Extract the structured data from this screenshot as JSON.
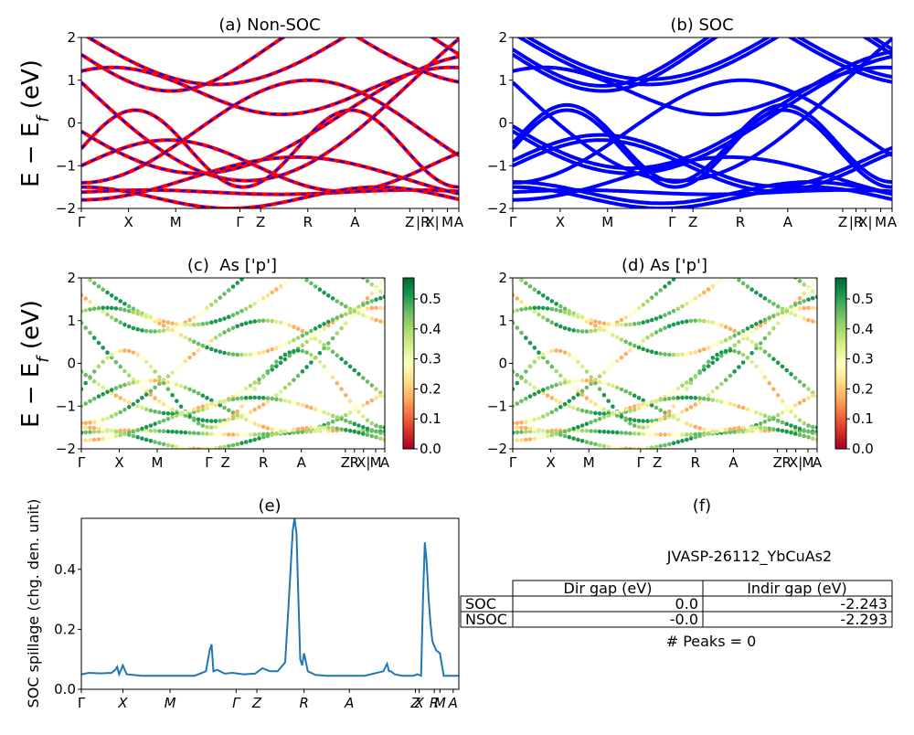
{
  "chart_data": [
    {
      "id": "a",
      "type": "line",
      "title": "(a) Non-SOC",
      "ylabel": "E - E_f (eV)",
      "ylim": [
        -2,
        2
      ],
      "yticks": [
        "2",
        "1",
        "0",
        "−1",
        "−2"
      ],
      "kpoint_labels": [
        "Γ",
        "X",
        "M",
        "Γ",
        "Z",
        "R",
        "A",
        "Z",
        "|R",
        "X|",
        "M",
        "A"
      ],
      "series": [
        {
          "color": "#ff0000",
          "dash_color": "#0000ff"
        }
      ]
    },
    {
      "id": "b",
      "type": "line",
      "title": "(b) SOC",
      "ylim": [
        -2,
        2
      ],
      "yticks": [
        "2",
        "1",
        "0",
        "−1",
        "−2"
      ],
      "kpoint_labels": [
        "Γ",
        "X",
        "M",
        "Γ",
        "Z",
        "R",
        "A",
        "Z",
        "|R",
        "X|",
        "M",
        "A"
      ],
      "series": [
        {
          "color": "#0000ff"
        }
      ]
    },
    {
      "id": "c",
      "type": "scatter",
      "title": "(c)  As ['p']",
      "ylabel": "E - E_f (eV)",
      "ylim": [
        -2,
        2
      ],
      "yticks": [
        "2",
        "1",
        "0",
        "−1",
        "−2"
      ],
      "kpoint_labels": [
        "Γ",
        "X",
        "M",
        "Γ",
        "Z",
        "R",
        "A",
        "Z",
        "R",
        "X|",
        "M",
        "A"
      ],
      "colorbar": {
        "min": 0.0,
        "max": 0.57,
        "ticks": [
          "0.5",
          "0.4",
          "0.3",
          "0.2",
          "0.1",
          "0.0"
        ],
        "colormap": "RdYlGn"
      }
    },
    {
      "id": "d",
      "type": "scatter",
      "title": "(d) As ['p']",
      "ylim": [
        -2,
        2
      ],
      "yticks": [
        "2",
        "1",
        "0",
        "−1",
        "−2"
      ],
      "kpoint_labels": [
        "Γ",
        "X",
        "M",
        "Γ",
        "Z",
        "R",
        "A",
        "Z",
        "R",
        "X|",
        "M",
        "A"
      ],
      "colorbar": {
        "min": 0.0,
        "max": 0.57,
        "ticks": [
          "0.5",
          "0.4",
          "0.3",
          "0.2",
          "0.1",
          "0.0"
        ],
        "colormap": "RdYlGn"
      }
    },
    {
      "id": "e",
      "type": "line",
      "title": "(e)",
      "ylabel": "SOC spillage (chg. den. unit)",
      "ylim": [
        0,
        0.57
      ],
      "yticks": [
        "0.4",
        "0.2",
        "0.0"
      ],
      "kpoint_labels": [
        "Γ",
        "X",
        "M",
        "Γ",
        "Z",
        "R",
        "A",
        "Z",
        "X",
        "R",
        "M",
        "A"
      ],
      "series": [
        {
          "color": "#1f77b4",
          "x": [
            0,
            0.02,
            0.05,
            0.08,
            0.09,
            0.095,
            0.1,
            0.11,
            0.12,
            0.16,
            0.2,
            0.25,
            0.3,
            0.33,
            0.34,
            0.345,
            0.35,
            0.36,
            0.38,
            0.4,
            0.43,
            0.46,
            0.48,
            0.5,
            0.52,
            0.54,
            0.55,
            0.56,
            0.565,
            0.57,
            0.575,
            0.58,
            0.585,
            0.59,
            0.6,
            0.62,
            0.65,
            0.7,
            0.75,
            0.8,
            0.81,
            0.815,
            0.82,
            0.83,
            0.85,
            0.88,
            0.89,
            0.9,
            0.905,
            0.91,
            0.915,
            0.92,
            0.925,
            0.93,
            0.94,
            0.95,
            0.96,
            0.98,
            1.0
          ],
          "y": [
            0.05,
            0.055,
            0.053,
            0.055,
            0.065,
            0.075,
            0.05,
            0.08,
            0.05,
            0.045,
            0.045,
            0.045,
            0.045,
            0.06,
            0.13,
            0.15,
            0.06,
            0.065,
            0.052,
            0.055,
            0.05,
            0.052,
            0.07,
            0.06,
            0.06,
            0.09,
            0.3,
            0.53,
            0.57,
            0.52,
            0.3,
            0.1,
            0.08,
            0.12,
            0.06,
            0.048,
            0.045,
            0.045,
            0.045,
            0.06,
            0.085,
            0.06,
            0.06,
            0.05,
            0.045,
            0.045,
            0.05,
            0.045,
            0.3,
            0.49,
            0.42,
            0.3,
            0.22,
            0.16,
            0.13,
            0.12,
            0.045,
            0.045,
            0.045
          ]
        }
      ]
    }
  ],
  "panel_f": {
    "title": "(f)",
    "id_label": "JVASP-26112_YbCuAs2",
    "table": {
      "headers": [
        "",
        "Dir gap (eV)",
        "Indir gap (eV)"
      ],
      "rows": [
        [
          "SOC",
          "0.0",
          "-2.243"
        ],
        [
          "NSOC",
          "-0.0",
          "-2.293"
        ]
      ]
    },
    "peaks_label": "# Peaks = 0"
  }
}
